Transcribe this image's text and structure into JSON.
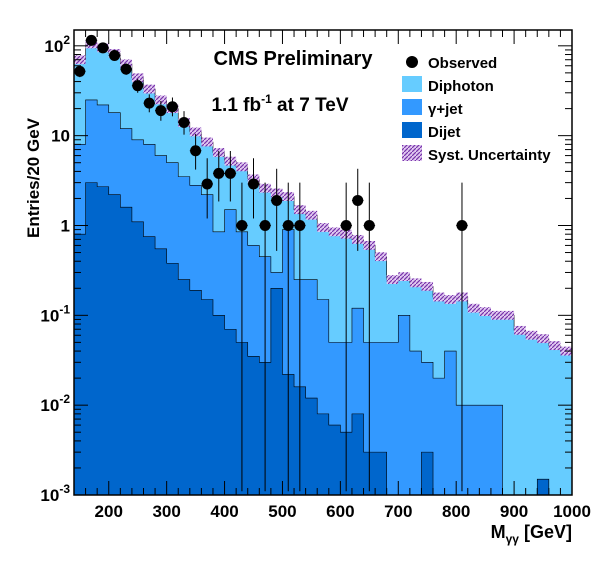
{
  "chart_data": {
    "type": "area",
    "title": "CMS Preliminary",
    "subtitle_main": "1.1 fb",
    "subtitle_sup": "-1",
    "subtitle_rest": " at 7 TeV",
    "xlabel": "M",
    "xlabel_sub": "γγ",
    "xlabel_unit": " [GeV]",
    "ylabel": "Entries/20 GeV",
    "xlim": [
      140,
      1000
    ],
    "ylim": [
      0.001,
      150
    ],
    "yscale": "log",
    "x_ticks": [
      200,
      300,
      400,
      500,
      600,
      700,
      800,
      900,
      1000
    ],
    "y_ticks": [
      {
        "base": "10",
        "exp": "-3",
        "value": 0.001
      },
      {
        "base": "10",
        "exp": "-2",
        "value": 0.01
      },
      {
        "base": "10",
        "exp": "-1",
        "value": 0.1
      },
      {
        "base": "1",
        "exp": "",
        "value": 1
      },
      {
        "base": "10",
        "exp": "",
        "value": 10
      },
      {
        "base": "10",
        "exp": "2",
        "value": 100
      }
    ],
    "legend_position": "top-right",
    "bin_edges": [
      140,
      160,
      180,
      200,
      220,
      240,
      260,
      280,
      300,
      320,
      340,
      360,
      380,
      400,
      420,
      440,
      460,
      480,
      500,
      520,
      540,
      560,
      580,
      600,
      620,
      640,
      660,
      680,
      700,
      720,
      740,
      760,
      780,
      800,
      820,
      840,
      860,
      880,
      900,
      920,
      940,
      960,
      980,
      1000
    ],
    "stack": [
      {
        "name": "Diphoton",
        "color": "#66ccff",
        "totals": [
          70,
          105,
          95,
          82,
          63,
          44,
          33,
          25,
          20,
          14,
          11,
          8.5,
          6.5,
          5.2,
          4.5,
          3.3,
          2.6,
          2.3,
          2.1,
          1.5,
          1.3,
          0.95,
          0.85,
          0.8,
          0.7,
          0.6,
          0.45,
          0.25,
          0.27,
          0.23,
          0.21,
          0.16,
          0.15,
          0.16,
          0.12,
          0.11,
          0.1,
          0.1,
          0.068,
          0.06,
          0.055,
          0.046,
          0.04
        ]
      },
      {
        "name": "γ+jet",
        "color": "#3399ff",
        "totals": [
          8,
          25,
          22,
          18,
          12,
          9,
          8,
          6,
          5,
          3.5,
          2.8,
          2.2,
          0.85,
          1.5,
          0.85,
          0.6,
          0.45,
          0.3,
          0.9,
          0.25,
          0.25,
          0.15,
          0.05,
          0.05,
          0.12,
          0.05,
          0.05,
          0.05,
          0.1,
          0.04,
          0.03,
          0.02,
          0.04,
          0.01,
          0.01,
          0.01,
          0.01,
          0.001,
          0.001,
          0.001,
          0.001,
          0.001,
          0.001
        ]
      },
      {
        "name": "Dijet",
        "color": "#0066cc",
        "totals": [
          0.8,
          3,
          2.7,
          2.2,
          1.6,
          1.1,
          0.75,
          0.55,
          0.38,
          0.25,
          0.19,
          0.15,
          0.1,
          0.07,
          0.05,
          0.035,
          0.03,
          0.2,
          0.022,
          0.016,
          0.012,
          0.008,
          0.006,
          0.005,
          0.008,
          0.003,
          0.003,
          0.001,
          0.001,
          0.001,
          0.003,
          0.001,
          0.001,
          0.001,
          0.001,
          0.001,
          0.001,
          0.001,
          0.001,
          0.001,
          0.0015,
          0.001,
          0.001
        ]
      }
    ],
    "observed": {
      "name": "Observed",
      "x": [
        150,
        170,
        190,
        210,
        230,
        250,
        270,
        290,
        310,
        330,
        350,
        370,
        390,
        410,
        430,
        450,
        470,
        490,
        510,
        530,
        610,
        630,
        650,
        810
      ],
      "y": [
        52,
        115,
        95,
        78,
        55,
        36,
        23,
        19,
        21,
        14,
        6.8,
        2.9,
        3.8,
        3.8,
        1,
        2.9,
        1,
        1.9,
        1,
        1,
        1,
        1.9,
        1,
        1
      ]
    },
    "legend": [
      {
        "label": "Observed",
        "kind": "marker",
        "color": "#000000"
      },
      {
        "label": "Diphoton",
        "kind": "box",
        "color": "#66ccff"
      },
      {
        "label": "γ+jet",
        "kind": "box",
        "color": "#3399ff"
      },
      {
        "label": "Dijet",
        "kind": "box",
        "color": "#0066cc"
      },
      {
        "label": "Syst. Uncertainty",
        "kind": "hatch",
        "color": "#9966cc"
      }
    ]
  }
}
